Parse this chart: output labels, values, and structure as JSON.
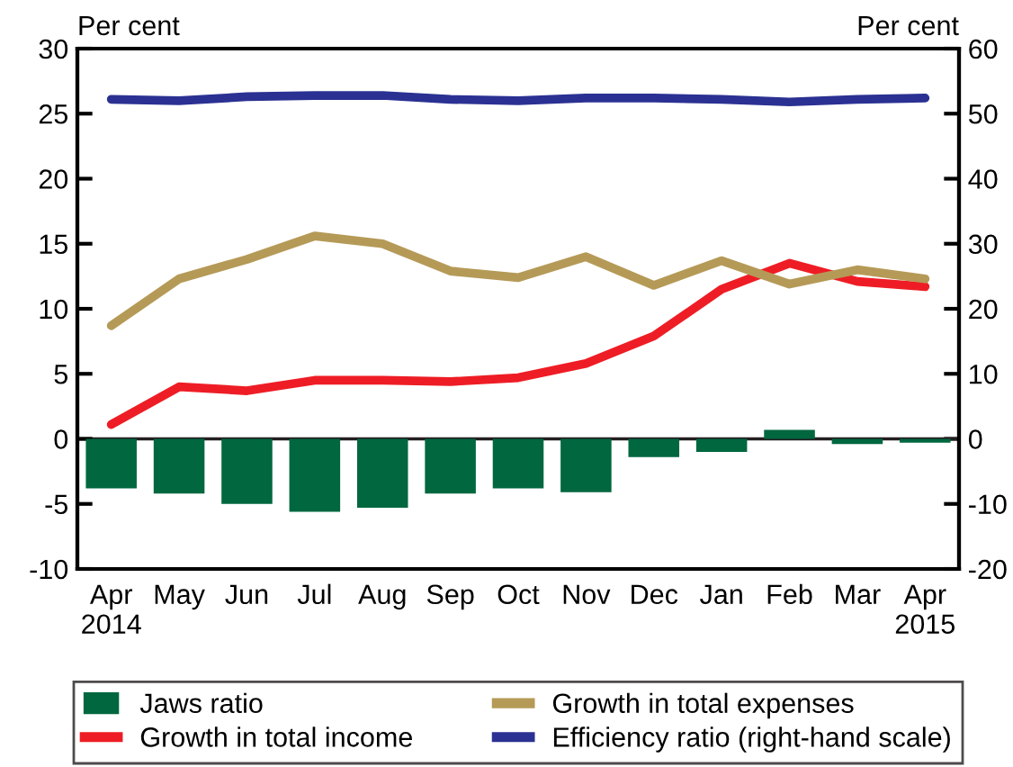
{
  "chart_data": {
    "type": "bar",
    "ylabel": "Per cent",
    "y2label": "Per cent",
    "categories": [
      "Apr\n2014",
      "May",
      "Jun",
      "Jul",
      "Aug",
      "Sep",
      "Oct",
      "Nov",
      "Dec",
      "Jan",
      "Feb",
      "Mar",
      "Apr\n2015"
    ],
    "series": [
      {
        "name": "Jaws ratio",
        "color": "#00673f",
        "values": [
          -3.8,
          -4.2,
          -5.0,
          -5.6,
          -5.3,
          -4.2,
          -3.8,
          -4.1,
          -1.4,
          -1.0,
          0.7,
          -0.4,
          -0.3
        ]
      },
      {
        "name": "Growth in total income",
        "type": "line",
        "color": "#ee1d25",
        "values": [
          1.1,
          4.0,
          3.7,
          4.5,
          4.5,
          4.4,
          4.7,
          5.8,
          7.9,
          11.5,
          13.5,
          12.1,
          11.7
        ]
      },
      {
        "name": "Growth in total expenses",
        "type": "line",
        "color": "#b59a57",
        "values": [
          8.7,
          12.3,
          13.8,
          15.6,
          15.0,
          12.9,
          12.4,
          14.0,
          11.8,
          13.7,
          11.9,
          13.0,
          12.3
        ]
      },
      {
        "name": "Efficiency ratio (right-hand scale)",
        "type": "line",
        "axis": "y2",
        "color": "#2b3192",
        "values": [
          52.2,
          52.0,
          52.6,
          52.8,
          52.8,
          52.2,
          52.0,
          52.4,
          52.4,
          52.2,
          51.8,
          52.2,
          52.4
        ]
      }
    ],
    "ylim": [
      -10,
      30
    ],
    "yticks": [
      -10,
      -5,
      0,
      5,
      10,
      15,
      20,
      25,
      30
    ],
    "y2lim": [
      -20,
      60
    ],
    "y2ticks": [
      -20,
      -10,
      0,
      10,
      20,
      30,
      40,
      50,
      60
    ],
    "ref_lines": [
      {
        "axis": "y",
        "value": 0,
        "color": "#231f20"
      }
    ],
    "grid": false,
    "legend": "bottom",
    "marker": "none",
    "line_style": "solid"
  }
}
